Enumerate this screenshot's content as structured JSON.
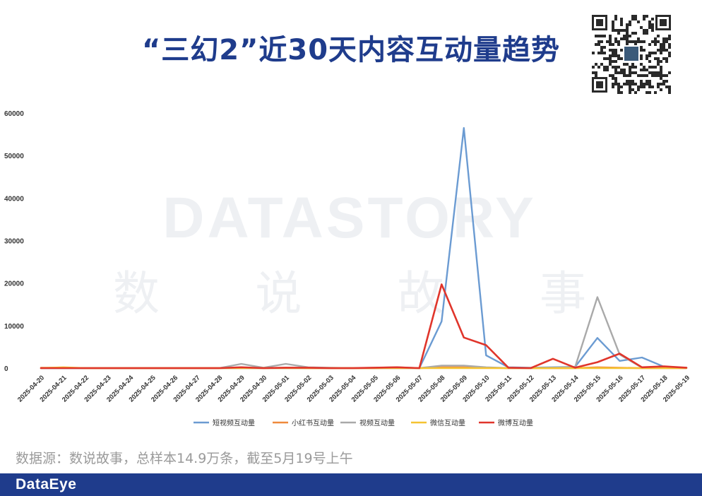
{
  "header": {
    "title": "“三幻2”近30天内容互动量趋势"
  },
  "watermark": {
    "en": "DATASTORY",
    "cn": [
      "数",
      "说",
      "故",
      "事"
    ]
  },
  "source_note": "数据源：数说故事，总样本14.9万条，截至5月19号上午",
  "footer": {
    "brand": "DataEye"
  },
  "chart_data": {
    "type": "line",
    "x": [
      "2025-04-20",
      "2025-04-21",
      "2025-04-22",
      "2025-04-23",
      "2025-04-24",
      "2025-04-25",
      "2025-04-26",
      "2025-04-27",
      "2025-04-28",
      "2025-04-29",
      "2025-04-30",
      "2025-05-01",
      "2025-05-02",
      "2025-05-03",
      "2025-05-04",
      "2025-05-05",
      "2025-05-06",
      "2025-05-07",
      "2025-05-08",
      "2025-05-09",
      "2025-05-10",
      "2025-05-11",
      "2025-05-12",
      "2025-05-13",
      "2025-05-14",
      "2025-05-15",
      "2025-05-16",
      "2025-05-17",
      "2025-05-18",
      "2025-05-19"
    ],
    "ylim": [
      0,
      60000
    ],
    "yticks": [
      0,
      10000,
      20000,
      30000,
      40000,
      50000,
      60000
    ],
    "grid": false,
    "legend_position": "bottom",
    "series": [
      {
        "name": "短视频互动量",
        "color": "#6b9bd2",
        "values": [
          0,
          0,
          0,
          0,
          0,
          0,
          0,
          0,
          0,
          0,
          0,
          0,
          0,
          0,
          0,
          0,
          0,
          0,
          11000,
          56500,
          3000,
          200,
          100,
          200,
          300,
          7100,
          1700,
          2500,
          300,
          100
        ]
      },
      {
        "name": "小红书互动量",
        "color": "#ef8a3c",
        "values": [
          100,
          100,
          0,
          0,
          0,
          0,
          0,
          0,
          0,
          100,
          0,
          100,
          0,
          0,
          0,
          0,
          100,
          0,
          200,
          200,
          100,
          0,
          0,
          0,
          0,
          200,
          100,
          0,
          0,
          0
        ]
      },
      {
        "name": "视频互动量",
        "color": "#a9a9a9",
        "values": [
          0,
          0,
          0,
          0,
          0,
          0,
          0,
          0,
          0,
          1000,
          100,
          1000,
          200,
          100,
          0,
          100,
          200,
          0,
          600,
          600,
          200,
          0,
          0,
          100,
          300,
          16700,
          3200,
          100,
          100,
          0
        ]
      },
      {
        "name": "微信互动量",
        "color": "#f5c332",
        "values": [
          0,
          200,
          0,
          0,
          0,
          0,
          0,
          0,
          0,
          0,
          0,
          0,
          0,
          0,
          0,
          0,
          0,
          0,
          0,
          0,
          0,
          0,
          0,
          0,
          0,
          0,
          0,
          0,
          0,
          0
        ]
      },
      {
        "name": "微博互动量",
        "color": "#e0352b",
        "values": [
          0,
          0,
          0,
          0,
          0,
          0,
          0,
          0,
          0,
          200,
          0,
          100,
          100,
          0,
          0,
          100,
          200,
          0,
          19700,
          7200,
          5400,
          100,
          0,
          2200,
          100,
          1400,
          3400,
          200,
          400,
          100
        ]
      }
    ]
  }
}
